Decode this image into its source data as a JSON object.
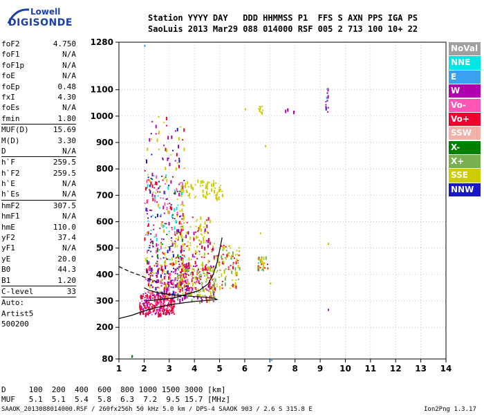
{
  "logo": {
    "company": "Lowell",
    "product": "DIGISONDE"
  },
  "header": {
    "line1": "Station YYYY DAY   DDD HHMMSS P1  FFS S AXN PPS IGA PS",
    "line2": "SaoLuis 2013 Mar29 088 014000 RSF 005 2 713 100 10+ 22"
  },
  "params": [
    {
      "k": "foF2",
      "v": "4.750"
    },
    {
      "k": "foF1",
      "v": "N/A"
    },
    {
      "k": "foF1p",
      "v": "N/A"
    },
    {
      "k": "foE",
      "v": "N/A"
    },
    {
      "k": "foEp",
      "v": "0.48"
    },
    {
      "k": "fxI",
      "v": "4.30"
    },
    {
      "k": "foEs",
      "v": "N/A"
    },
    {
      "k": "fmin",
      "v": "1.80",
      "sep": true
    },
    {
      "k": "MUF(D)",
      "v": "15.69"
    },
    {
      "k": "M(D)",
      "v": "3.30"
    },
    {
      "k": "D",
      "v": "N/A",
      "sep": true
    },
    {
      "k": "h`F",
      "v": "259.5"
    },
    {
      "k": "h`F2",
      "v": "259.5"
    },
    {
      "k": "h`E",
      "v": "N/A"
    },
    {
      "k": "h`Es",
      "v": "N/A",
      "sep": true
    },
    {
      "k": "hmF2",
      "v": "307.5"
    },
    {
      "k": "hmF1",
      "v": "N/A"
    },
    {
      "k": "hmE",
      "v": "110.0"
    },
    {
      "k": "yF2",
      "v": "37.4"
    },
    {
      "k": "yF1",
      "v": "N/A"
    },
    {
      "k": "yE",
      "v": "20.0"
    },
    {
      "k": "B0",
      "v": "44.3"
    },
    {
      "k": "B1",
      "v": "1.20",
      "sep": true
    },
    {
      "k": "C-level",
      "v": "33",
      "sep": true
    },
    {
      "k": "Auto:",
      "v": ""
    },
    {
      "k": "Artist5",
      "v": ""
    },
    {
      "k": "500200",
      "v": ""
    }
  ],
  "legend": [
    {
      "label": "NoVal",
      "color": "#a0a0a0"
    },
    {
      "label": "NNE",
      "color": "#00e5e5"
    },
    {
      "label": "E",
      "color": "#3aa0f0"
    },
    {
      "label": "W",
      "color": "#b000b0"
    },
    {
      "label": "Vo-",
      "color": "#ff55b5"
    },
    {
      "label": "Vo+",
      "color": "#f0002c"
    },
    {
      "label": "SSW",
      "color": "#f2b0a8"
    },
    {
      "label": "X-",
      "color": "#008000"
    },
    {
      "label": "X+",
      "color": "#78b050"
    },
    {
      "label": "SSE",
      "color": "#cccc00"
    },
    {
      "label": "NNW",
      "color": "#1818c8"
    }
  ],
  "chart_data": {
    "type": "scatter",
    "xlim": [
      1,
      14
    ],
    "ylim": [
      80,
      1280
    ],
    "xticks": [
      "1",
      "2",
      "3",
      "4",
      "5",
      "6",
      "7",
      "8",
      "9",
      "10",
      "11",
      "12",
      "13",
      "14"
    ],
    "yticks": [
      "80",
      "200",
      "300",
      "400",
      "500",
      "600",
      "700",
      "800",
      "900",
      "1000",
      "1100",
      "1280"
    ],
    "grid": "dotted",
    "profile": [
      [
        2.1,
        300
      ],
      [
        2.6,
        305
      ],
      [
        3.2,
        312
      ],
      [
        3.7,
        325
      ],
      [
        4.2,
        340
      ],
      [
        4.55,
        365
      ],
      [
        4.75,
        400
      ],
      [
        4.9,
        445
      ],
      [
        5.0,
        490
      ],
      [
        5.1,
        540
      ]
    ],
    "trace_lower": [
      [
        1.0,
        233
      ],
      [
        1.5,
        245
      ],
      [
        2.0,
        262
      ],
      [
        2.5,
        275
      ],
      [
        3.0,
        285
      ],
      [
        3.5,
        292
      ],
      [
        4.0,
        298
      ],
      [
        4.5,
        302
      ],
      [
        4.9,
        305
      ],
      [
        4.8,
        310
      ],
      [
        4.4,
        314
      ],
      [
        3.8,
        318
      ],
      [
        3.2,
        322
      ],
      [
        2.6,
        330
      ],
      [
        2.2,
        340
      ],
      [
        2.0,
        350
      ]
    ],
    "trace_upper_dashed": [
      [
        1.0,
        430
      ],
      [
        1.4,
        412
      ],
      [
        1.8,
        398
      ],
      [
        2.2,
        383
      ],
      [
        2.6,
        370
      ]
    ],
    "clusters": [
      {
        "x": [
          1.8,
          3.2
        ],
        "y": [
          250,
          330
        ],
        "n": 260,
        "colors": [
          "Vo+",
          "Vo+",
          "Vo+",
          "Vo-",
          "W"
        ]
      },
      {
        "x": [
          2.0,
          3.8
        ],
        "y": [
          320,
          450
        ],
        "n": 260,
        "colors": [
          "Vo+",
          "Vo-",
          "W",
          "SSE",
          "NNW"
        ]
      },
      {
        "x": [
          3.3,
          4.8
        ],
        "y": [
          300,
          440
        ],
        "n": 220,
        "colors": [
          "SSE",
          "SSE",
          "Vo+",
          "W",
          "X+"
        ]
      },
      {
        "x": [
          2.0,
          3.6
        ],
        "y": [
          450,
          780
        ],
        "n": 240,
        "colors": [
          "Vo+",
          "W",
          "NNW",
          "SSE",
          "Vo-",
          "X-",
          "NNE"
        ]
      },
      {
        "x": [
          3.2,
          4.6
        ],
        "y": [
          420,
          620
        ],
        "n": 140,
        "colors": [
          "SSE",
          "Vo+",
          "W",
          "SSE"
        ]
      },
      {
        "x": [
          4.6,
          5.8
        ],
        "y": [
          350,
          520
        ],
        "n": 120,
        "colors": [
          "SSE",
          "SSE",
          "X+",
          "Vo+"
        ]
      },
      {
        "x": [
          3.4,
          5.2
        ],
        "y": [
          690,
          760
        ],
        "n": 70,
        "colors": [
          "SSE",
          "SSE",
          "SSE"
        ]
      },
      {
        "x": [
          2.0,
          3.6
        ],
        "y": [
          780,
          1000
        ],
        "n": 50,
        "colors": [
          "Vo+",
          "W",
          "NNW",
          "SSE"
        ]
      },
      {
        "x": [
          6.5,
          6.9
        ],
        "y": [
          420,
          470
        ],
        "n": 35,
        "colors": [
          "SSE",
          "X+",
          "Vo+"
        ]
      },
      {
        "x": [
          6.5,
          6.7
        ],
        "y": [
          1010,
          1040
        ],
        "n": 10,
        "colors": [
          "SSE"
        ]
      },
      {
        "x": [
          9.2,
          9.3
        ],
        "y": [
          1010,
          1120
        ],
        "n": 14,
        "colors": [
          "W",
          "NNW",
          "E"
        ]
      },
      {
        "x": [
          7.6,
          8.0
        ],
        "y": [
          1020,
          1030
        ],
        "n": 5,
        "colors": [
          "W"
        ]
      }
    ],
    "isolated_points": [
      {
        "x": 1.5,
        "y": 95,
        "c": "X-"
      },
      {
        "x": 1.5,
        "y": 92,
        "c": "X-"
      },
      {
        "x": 2.0,
        "y": 1270,
        "c": "E"
      },
      {
        "x": 7.05,
        "y": 80,
        "c": "E"
      },
      {
        "x": 9.3,
        "y": 520,
        "c": "SSE"
      },
      {
        "x": 9.3,
        "y": 270,
        "c": "W"
      },
      {
        "x": 6.0,
        "y": 1030,
        "c": "SSE"
      },
      {
        "x": 6.8,
        "y": 890,
        "c": "SSE"
      },
      {
        "x": 7.0,
        "y": 370,
        "c": "SSE"
      },
      {
        "x": 6.6,
        "y": 560,
        "c": "SSE"
      }
    ]
  },
  "footer": {
    "dist": "D     100  200  400  600  800 1000 1500 3000 [km]",
    "muf": "MUF   5.1  5.1  5.4  5.8  6.3  7.2  9.5 15.7 [MHz]",
    "info": "SAAOK_2013088014000.RSF / 260fx256h 50 kHz 5.0 km / DPS-4 SAAOK 903 / 2.6 S 315.8 E",
    "version": "Ion2Png 1.3.17"
  }
}
